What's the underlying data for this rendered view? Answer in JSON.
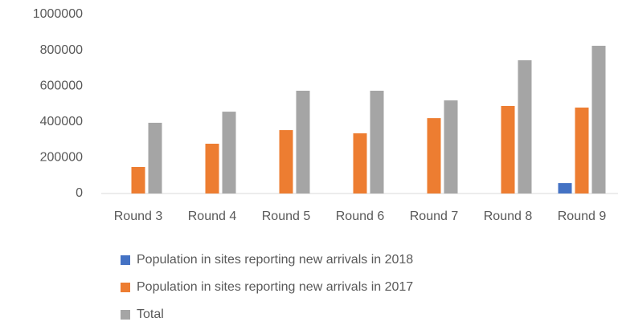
{
  "chart_data": {
    "type": "bar",
    "categories": [
      "Round 3",
      "Round 4",
      "Round 5",
      "Round 6",
      "Round 7",
      "Round 8",
      "Round 9"
    ],
    "series": [
      {
        "name": "Population in sites reporting new arrivals in 2018",
        "color": "#4472c4",
        "values": [
          null,
          null,
          null,
          null,
          null,
          null,
          58000
        ]
      },
      {
        "name": "Population in sites reporting new arrivals in 2017",
        "color": "#ed7d31",
        "values": [
          148000,
          278000,
          354000,
          336000,
          421000,
          489000,
          480000
        ]
      },
      {
        "name": "Total",
        "color": "#a5a5a5",
        "values": [
          395000,
          457000,
          574000,
          574000,
          520000,
          744000,
          825000
        ]
      }
    ],
    "ylim": [
      0,
      1000000
    ],
    "yticks": [
      0,
      200000,
      400000,
      600000,
      800000,
      1000000
    ],
    "grid": false,
    "legend": "bottom"
  }
}
